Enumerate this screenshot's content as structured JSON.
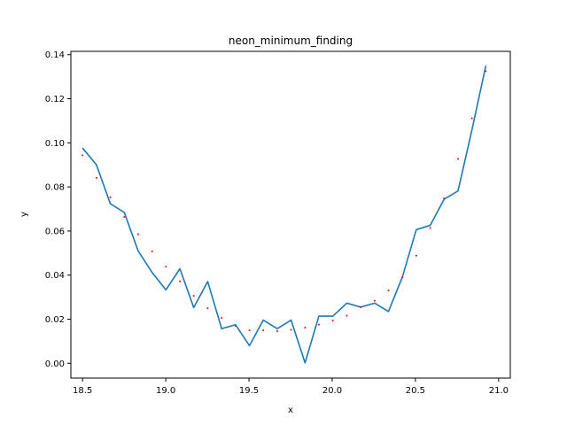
{
  "chart_data": {
    "type": "line",
    "title": "neon_minimum_finding",
    "xlabel": "x",
    "ylabel": "y",
    "xlim": [
      18.43,
      21.07
    ],
    "ylim": [
      -0.0067,
      0.1415
    ],
    "grid": false,
    "xticks": [
      18.5,
      19.0,
      19.5,
      20.0,
      20.5,
      21.0
    ],
    "xtick_labels": [
      "18.5",
      "19.0",
      "19.5",
      "20.0",
      "20.5",
      "21.0"
    ],
    "yticks": [
      0.0,
      0.02,
      0.04,
      0.06,
      0.08,
      0.1,
      0.12,
      0.14
    ],
    "ytick_labels": [
      "0.00",
      "0.02",
      "0.04",
      "0.06",
      "0.08",
      "0.10",
      "0.12",
      "0.14"
    ],
    "series": [
      {
        "style": "line",
        "color": "#1f77b4",
        "x": [
          18.5,
          18.584,
          18.667,
          18.751,
          18.834,
          18.918,
          19.001,
          19.085,
          19.168,
          19.252,
          19.336,
          19.419,
          19.503,
          19.586,
          19.67,
          19.753,
          19.837,
          19.92,
          20.004,
          20.088,
          20.171,
          20.255,
          20.338,
          20.422,
          20.505,
          20.589,
          20.672,
          20.756,
          20.839,
          20.923
        ],
        "y": [
          0.0977,
          0.09,
          0.0724,
          0.0684,
          0.051,
          0.0412,
          0.0333,
          0.0429,
          0.0253,
          0.0371,
          0.0157,
          0.0175,
          0.008,
          0.0196,
          0.0157,
          0.0196,
          0.0002,
          0.0214,
          0.0214,
          0.0273,
          0.0255,
          0.0273,
          0.0235,
          0.0392,
          0.0606,
          0.0626,
          0.0744,
          0.0782,
          0.1057,
          0.135
        ]
      },
      {
        "style": "dots",
        "color": "#ff0000",
        "x": [
          18.5,
          18.584,
          18.667,
          18.751,
          18.834,
          18.918,
          19.001,
          19.085,
          19.168,
          19.252,
          19.336,
          19.419,
          19.503,
          19.586,
          19.67,
          19.753,
          19.837,
          19.92,
          20.004,
          20.088,
          20.171,
          20.255,
          20.338,
          20.422,
          20.505,
          20.589,
          20.672,
          20.756,
          20.839,
          20.923
        ],
        "y": [
          0.0943,
          0.0841,
          0.0753,
          0.0664,
          0.0586,
          0.0508,
          0.0438,
          0.0372,
          0.0306,
          0.025,
          0.0206,
          0.017,
          0.015,
          0.015,
          0.0146,
          0.0152,
          0.0162,
          0.0176,
          0.0194,
          0.0216,
          0.0254,
          0.0284,
          0.033,
          0.039,
          0.0488,
          0.0614,
          0.0748,
          0.0927,
          0.1112,
          0.1325
        ]
      }
    ]
  }
}
